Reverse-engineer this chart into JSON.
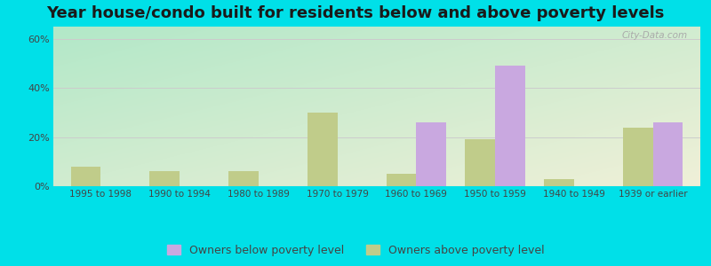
{
  "title": "Year house/condo built for residents below and above poverty levels",
  "categories": [
    "1995 to 1998",
    "1990 to 1994",
    "1980 to 1989",
    "1970 to 1979",
    "1960 to 1969",
    "1950 to 1959",
    "1940 to 1949",
    "1939 or earlier"
  ],
  "below_poverty": [
    0,
    0,
    0,
    0,
    26,
    49,
    0,
    26
  ],
  "above_poverty": [
    8,
    6,
    6,
    30,
    5,
    19,
    3,
    24
  ],
  "below_color": "#c9a8e0",
  "above_color": "#c0cc8a",
  "bg_topleft": "#b2e8c8",
  "bg_bottomright": "#f0f0d8",
  "outer_bg": "#00e0e8",
  "ylim": [
    0,
    65
  ],
  "yticks": [
    0,
    20,
    40,
    60
  ],
  "ytick_labels": [
    "0%",
    "20%",
    "40%",
    "60%"
  ],
  "bar_width": 0.38,
  "legend_below": "Owners below poverty level",
  "legend_above": "Owners above poverty level",
  "title_fontsize": 13,
  "tick_fontsize": 7.5,
  "legend_fontsize": 9
}
